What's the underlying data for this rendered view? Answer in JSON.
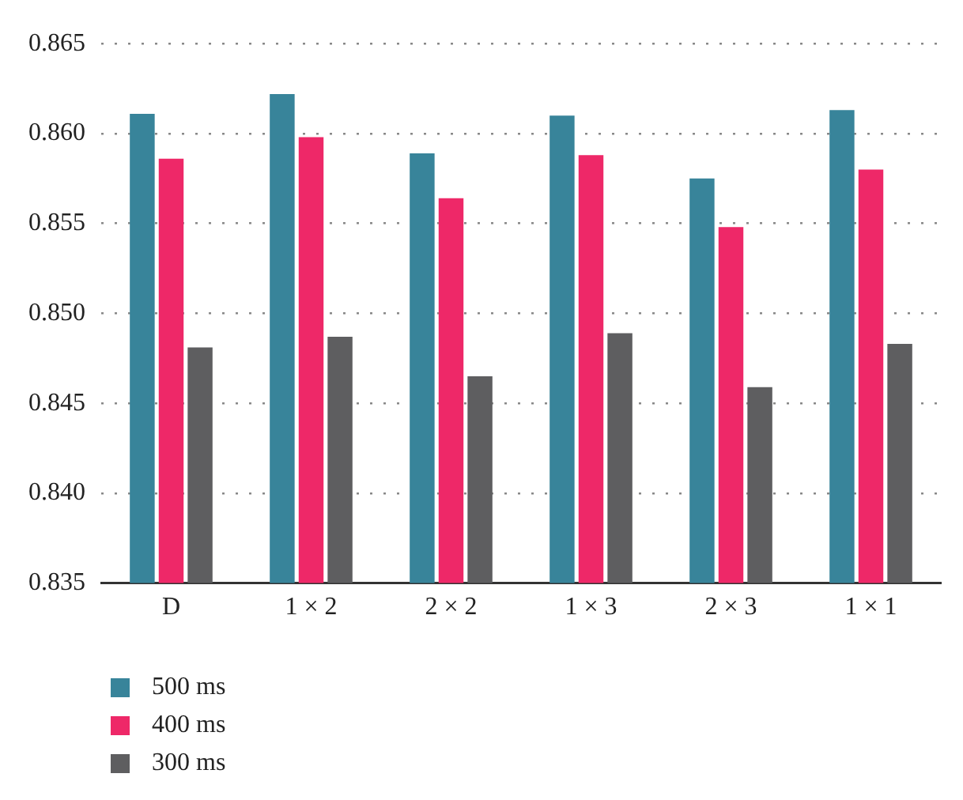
{
  "chart_data": {
    "type": "bar",
    "categories": [
      "D",
      "1 × 2",
      "2 × 2",
      "1 × 3",
      "2 × 3",
      "1 × 1"
    ],
    "series": [
      {
        "name": "500 ms",
        "color": "#38849a",
        "values": [
          0.8611,
          0.8622,
          0.8589,
          0.861,
          0.8575,
          0.8613
        ]
      },
      {
        "name": "400 ms",
        "color": "#ee2868",
        "values": [
          0.8586,
          0.8598,
          0.8564,
          0.8588,
          0.8548,
          0.858
        ]
      },
      {
        "name": "300 ms",
        "color": "#5e5e60",
        "values": [
          0.8481,
          0.8487,
          0.8465,
          0.8489,
          0.8459,
          0.8483
        ]
      }
    ],
    "ylim": [
      0.835,
      0.865
    ],
    "yticks": [
      0.835,
      {
        "value": 0.84,
        "label": "0.840"
      },
      0.845,
      {
        "value": 0.85,
        "label": "0.850"
      },
      0.855,
      {
        "value": 0.86,
        "label": "0.860"
      },
      0.865
    ],
    "grid": "y",
    "legend": "bottom left"
  }
}
